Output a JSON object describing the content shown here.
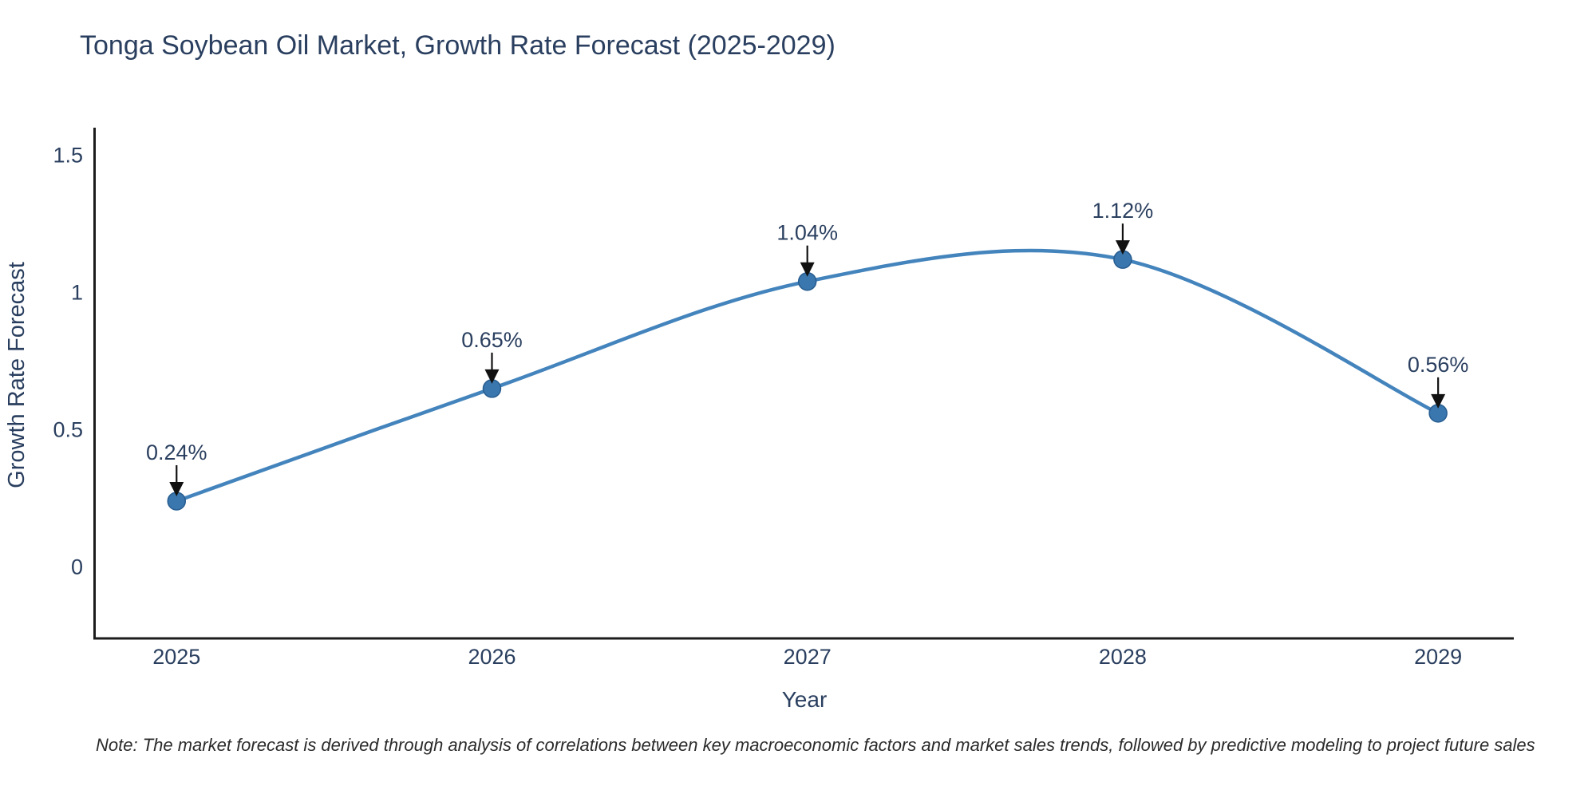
{
  "title": "Tonga Soybean Oil Market, Growth Rate Forecast (2025-2029)",
  "note": "Note: The market forecast is derived through analysis of correlations between key macroeconomic factors and market sales trends, followed by predictive modeling to project future sales",
  "chart_data": {
    "type": "line",
    "line_shape": "spline",
    "title": "Tonga Soybean Oil Market, Growth Rate Forecast (2025-2029)",
    "xlabel": "Year",
    "ylabel": "Growth Rate Forecast",
    "x": [
      2025,
      2026,
      2027,
      2028,
      2029
    ],
    "series": [
      {
        "name": "Growth Rate Forecast",
        "values": [
          0.24,
          0.65,
          1.04,
          1.12,
          0.56
        ]
      }
    ],
    "point_labels": [
      "0.24%",
      "0.65%",
      "1.04%",
      "1.12%",
      "0.56%"
    ],
    "xticks": [
      "2025",
      "2026",
      "2027",
      "2028",
      "2029"
    ],
    "yticks": [
      0,
      0.5,
      1,
      1.5
    ],
    "ytick_labels": [
      "0",
      "0.5",
      "1",
      "1.5"
    ],
    "xlim": [
      2024.74,
      2029.24
    ],
    "ylim": [
      -0.26,
      1.6
    ],
    "grid": false,
    "legend_position": "none",
    "colors": {
      "line": "#4484bd",
      "marker_fill": "#3a77ae",
      "marker_edge": "#275d90",
      "arrow": "#111111",
      "axis_line": "#1c1c1c",
      "text": "#2a3f5f",
      "note_text": "#2b2b2b",
      "background": "#ffffff"
    }
  }
}
